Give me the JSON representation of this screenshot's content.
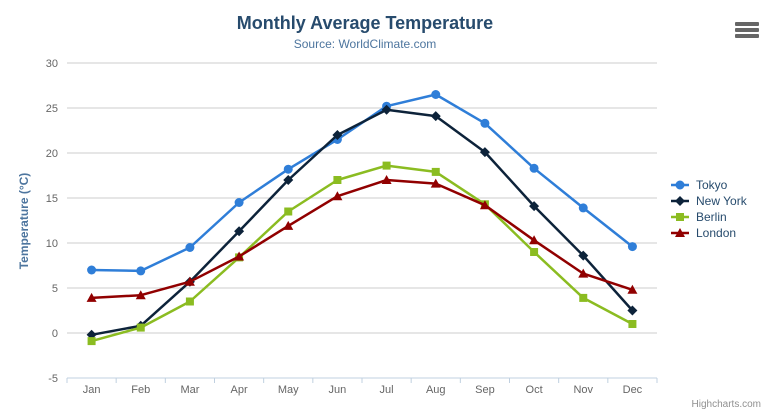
{
  "header": {
    "title": "Monthly Average Temperature",
    "subtitle": "Source: WorldClimate.com"
  },
  "credits": {
    "label": "Highcharts.com"
  },
  "chart_data": {
    "type": "line",
    "title": "Monthly Average Temperature",
    "subtitle": "Source: WorldClimate.com",
    "categories": [
      "Jan",
      "Feb",
      "Mar",
      "Apr",
      "May",
      "Jun",
      "Jul",
      "Aug",
      "Sep",
      "Oct",
      "Nov",
      "Dec"
    ],
    "xlabel": "",
    "ylabel": "Temperature (°C)",
    "ylim": [
      -5,
      30
    ],
    "yticks": [
      -5,
      0,
      5,
      10,
      15,
      20,
      25,
      30
    ],
    "grid": true,
    "legend_position": "right",
    "series": [
      {
        "name": "Tokyo",
        "color": "#2f7ed8",
        "marker": "circle",
        "values": [
          7.0,
          6.9,
          9.5,
          14.5,
          18.2,
          21.5,
          25.2,
          26.5,
          23.3,
          18.3,
          13.9,
          9.6
        ]
      },
      {
        "name": "New York",
        "color": "#0d233a",
        "marker": "diamond",
        "values": [
          -0.2,
          0.8,
          5.7,
          11.3,
          17.0,
          22.0,
          24.8,
          24.1,
          20.1,
          14.1,
          8.6,
          2.5
        ]
      },
      {
        "name": "Berlin",
        "color": "#8bbc21",
        "marker": "square",
        "values": [
          -0.9,
          0.6,
          3.5,
          8.4,
          13.5,
          17.0,
          18.6,
          17.9,
          14.3,
          9.0,
          3.9,
          1.0
        ]
      },
      {
        "name": "London",
        "color": "#910000",
        "marker": "triangle",
        "values": [
          3.9,
          4.2,
          5.7,
          8.5,
          11.9,
          15.2,
          17.0,
          16.6,
          14.2,
          10.3,
          6.6,
          4.8
        ]
      }
    ]
  },
  "style_colors": {
    "title": "#274b6d",
    "subtitle": "#4d759e",
    "axis_title": "#4d759e",
    "axis_labels": "#666666",
    "grid_line": "#cccccc",
    "axis_line": "#c0d0e0",
    "legend_text": "#274b6d",
    "credits": "#909090"
  }
}
